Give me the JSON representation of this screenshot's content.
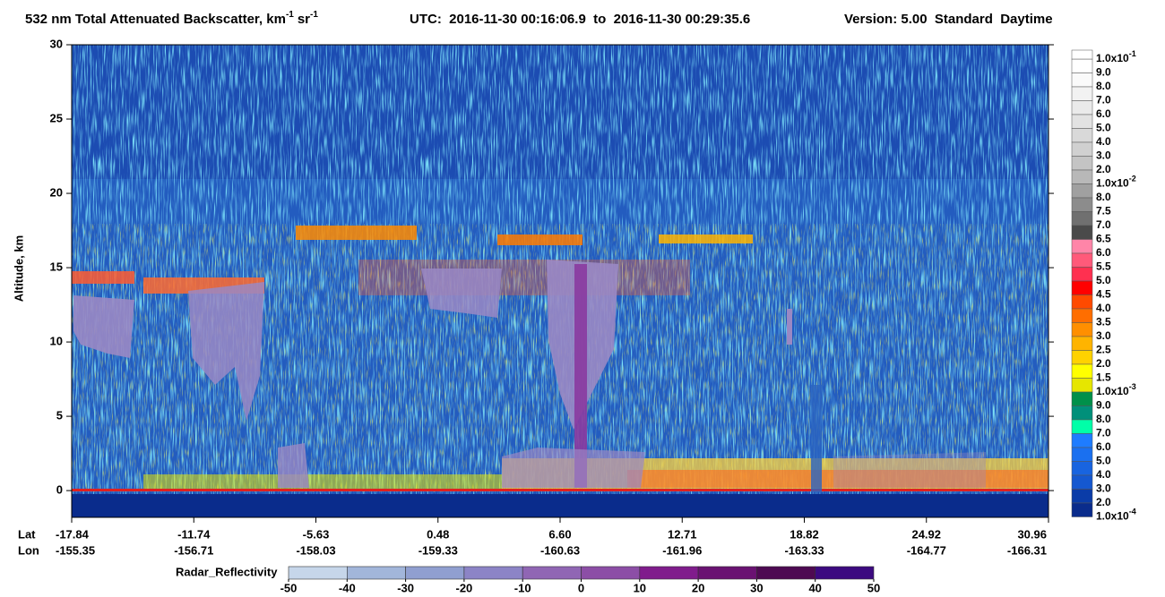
{
  "chart_data": {
    "type": "heatmap",
    "title": {
      "text": "532 nm Total Attenuated Backscatter, km",
      "exp1": "-1",
      "unit2": "sr",
      "exp2": "-1"
    },
    "utc": "UTC:  2016-11-30 00:16:06.9  to  2016-11-30 00:29:35.6",
    "version": "Version: 5.00  Standard  Daytime",
    "y_label": "Altitude, km",
    "ylim": [
      -1.8,
      30
    ],
    "yticks": [
      0,
      5,
      10,
      15,
      20,
      25,
      30
    ],
    "lat_label": "Lat",
    "lon_label": "Lon",
    "lat": [
      "-17.84",
      "-11.74",
      "-5.63",
      "0.48",
      "6.60",
      "12.71",
      "18.82",
      "24.92",
      "30.96"
    ],
    "lon": [
      "-155.35",
      "-156.71",
      "-158.03",
      "-159.33",
      "-160.63",
      "-161.96",
      "-163.33",
      "-164.77",
      "-166.31"
    ],
    "colorbar": {
      "labels": [
        {
          "base": "1.0x10",
          "exp": "-1"
        },
        "9.0",
        "8.0",
        "7.0",
        "6.0",
        "5.0",
        "4.0",
        "3.0",
        "2.0",
        {
          "base": "1.0x10",
          "exp": "-2"
        },
        "8.0",
        "7.5",
        "7.0",
        "6.5",
        "6.0",
        "5.5",
        "5.0",
        "4.5",
        "4.0",
        "3.5",
        "3.0",
        "2.5",
        "2.0",
        "1.5",
        {
          "base": "1.0x10",
          "exp": "-3"
        },
        "9.0",
        "8.0",
        "7.0",
        "6.0",
        "5.0",
        "4.0",
        "3.0",
        "2.0",
        {
          "base": "1.0x10",
          "exp": "-4"
        }
      ],
      "colors": [
        "#ffffff",
        "#fafafa",
        "#f2f2f2",
        "#eaeaea",
        "#e2e2e2",
        "#d9d9d9",
        "#d0d0d0",
        "#c4c4c4",
        "#b8b8b8",
        "#a0a0a0",
        "#8c8c8c",
        "#707070",
        "#4a4a4a",
        "#ff85a8",
        "#ff5a7a",
        "#ff3050",
        "#ff0000",
        "#ff4a00",
        "#ff6e00",
        "#ff8f00",
        "#ffb400",
        "#ffd200",
        "#ffff00",
        "#e6e600",
        "#00904a",
        "#00907a",
        "#00ffa8",
        "#1e7cff",
        "#1a70f0",
        "#1864e0",
        "#1558d0",
        "#0a3ca8",
        "#0a2c8c"
      ]
    },
    "radar": {
      "label": "Radar_Reflectivity",
      "ticks": [
        -50,
        -40,
        -30,
        -20,
        -10,
        0,
        10,
        20,
        30,
        40,
        50
      ],
      "colors": [
        "#c6d6ea",
        "#a2b6da",
        "#909fd0",
        "#8c84c6",
        "#9066b4",
        "#8c4ea6",
        "#801c8c",
        "#6a1272",
        "#4e0a52",
        "#3c0a80"
      ]
    }
  }
}
